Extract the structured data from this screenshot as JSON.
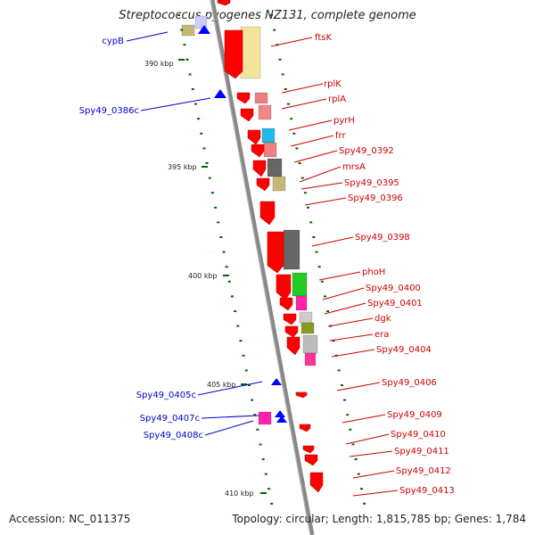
{
  "title": "Streptococcus pyogenes NZ131, complete genome",
  "footer": {
    "accession": "Accession: NC_011375",
    "summary": "Topology: circular; Length: 1,815,785 bp; Genes: 1,784"
  },
  "colors": {
    "forward": "#ff0000",
    "reverse": "#0000ff",
    "label_forward": "#cc0000",
    "label_reverse": "#0000cc",
    "backbone": "#888888",
    "tick_mark": "#006600"
  },
  "scale_ticks": [
    "390 kbp",
    "395 kbp",
    "400 kbp",
    "405 kbp",
    "410 kbp"
  ],
  "gene_labels_forward": [
    "ftsK",
    "rplK",
    "rplA",
    "pyrH",
    "frr",
    "Spy49_0392",
    "mrsA",
    "Spy49_0395",
    "Spy49_0396",
    "Spy49_0398",
    "phoH",
    "Spy49_0400",
    "Spy49_0401",
    "dgk",
    "era",
    "Spy49_0404",
    "Spy49_0406",
    "Spy49_0409",
    "Spy49_0410",
    "Spy49_0411",
    "Spy49_0412",
    "Spy49_0413"
  ],
  "gene_labels_reverse": [
    "cypB",
    "Spy49_0386c",
    "Spy49_0405c",
    "Spy49_0407c",
    "Spy49_0408c"
  ]
}
